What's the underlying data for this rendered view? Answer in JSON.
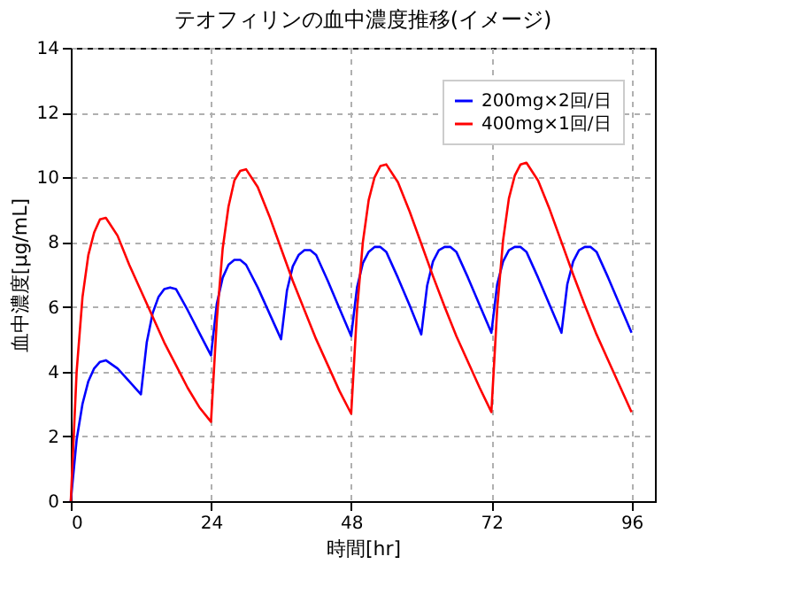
{
  "chart_data": {
    "type": "line",
    "title": "テオフィリンの血中濃度推移(イメージ)",
    "xlabel": "時間[hr]",
    "ylabel": "血中濃度[μg/mL]",
    "xlim": [
      0,
      100
    ],
    "xticks": [
      0,
      24,
      48,
      72,
      96
    ],
    "ylim": [
      0,
      14
    ],
    "yticks": [
      0,
      2,
      4,
      6,
      8,
      10,
      12,
      14
    ],
    "grid": true,
    "legend": "top right",
    "line_style": "solid",
    "marker": "none",
    "series": [
      {
        "name": "200mg×2回/日",
        "color": "#0000ff",
        "x": [
          0,
          1,
          2,
          3,
          4,
          5,
          6,
          8,
          10,
          12,
          13,
          14,
          15,
          16,
          17,
          18,
          20,
          22,
          24,
          25,
          26,
          27,
          28,
          29,
          30,
          32,
          34,
          36,
          37,
          38,
          39,
          40,
          41,
          42,
          44,
          46,
          48,
          49,
          50,
          51,
          52,
          53,
          54,
          56,
          58,
          60,
          61,
          62,
          63,
          64,
          65,
          66,
          68,
          70,
          72,
          73,
          74,
          75,
          76,
          77,
          78,
          80,
          82,
          84,
          85,
          86,
          87,
          88,
          89,
          90,
          92,
          94,
          96
        ],
        "values": [
          0,
          1.9,
          3.0,
          3.7,
          4.1,
          4.3,
          4.35,
          4.1,
          3.7,
          3.3,
          4.9,
          5.8,
          6.3,
          6.55,
          6.6,
          6.55,
          5.9,
          5.2,
          4.5,
          6.1,
          6.9,
          7.3,
          7.45,
          7.45,
          7.3,
          6.6,
          5.8,
          5.0,
          6.5,
          7.25,
          7.6,
          7.75,
          7.75,
          7.6,
          6.8,
          5.95,
          5.1,
          6.6,
          7.35,
          7.7,
          7.85,
          7.85,
          7.7,
          6.9,
          6.05,
          5.15,
          6.65,
          7.4,
          7.75,
          7.85,
          7.85,
          7.7,
          6.9,
          6.05,
          5.2,
          6.7,
          7.4,
          7.75,
          7.85,
          7.85,
          7.7,
          6.9,
          6.05,
          5.2,
          6.7,
          7.4,
          7.75,
          7.85,
          7.85,
          7.7,
          6.9,
          6.05,
          5.2
        ]
      },
      {
        "name": "400mg×1回/日",
        "color": "#ff0000",
        "x": [
          0,
          1,
          2,
          3,
          4,
          5,
          6,
          8,
          10,
          12,
          14,
          16,
          18,
          20,
          22,
          24,
          25,
          26,
          27,
          28,
          29,
          30,
          32,
          34,
          36,
          38,
          40,
          42,
          44,
          46,
          48,
          49,
          50,
          51,
          52,
          53,
          54,
          56,
          58,
          60,
          62,
          64,
          66,
          68,
          70,
          72,
          73,
          74,
          75,
          76,
          77,
          78,
          80,
          82,
          84,
          86,
          88,
          90,
          92,
          94,
          96
        ],
        "values": [
          0,
          4.0,
          6.3,
          7.6,
          8.3,
          8.7,
          8.75,
          8.2,
          7.3,
          6.5,
          5.7,
          4.9,
          4.2,
          3.5,
          2.9,
          2.45,
          5.6,
          7.8,
          9.1,
          9.9,
          10.2,
          10.25,
          9.7,
          8.8,
          7.8,
          6.8,
          5.9,
          5.0,
          4.2,
          3.4,
          2.7,
          5.9,
          8.0,
          9.3,
          10.0,
          10.35,
          10.4,
          9.85,
          8.95,
          7.95,
          6.95,
          6.0,
          5.1,
          4.3,
          3.5,
          2.75,
          5.95,
          8.05,
          9.35,
          10.05,
          10.4,
          10.45,
          9.9,
          9.0,
          8.0,
          7.0,
          6.05,
          5.15,
          4.35,
          3.55,
          2.75
        ]
      }
    ]
  }
}
